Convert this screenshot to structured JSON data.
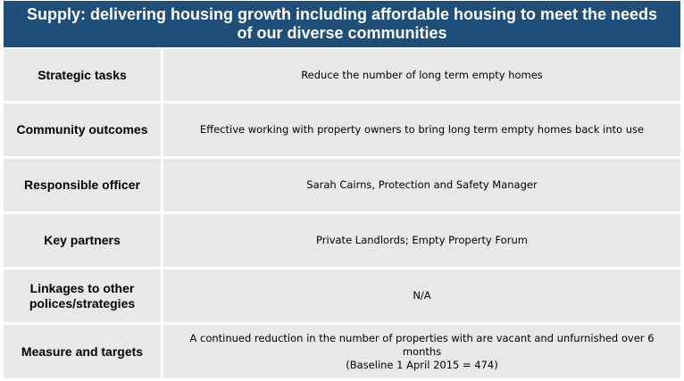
{
  "header": {
    "title_line1": "Supply: delivering housing growth including affordable housing to meet the needs",
    "title_line2": "of our diverse communities"
  },
  "rows": [
    {
      "label": "Strategic tasks",
      "value": "Reduce the number of long term empty homes"
    },
    {
      "label": "Community outcomes",
      "value": "Effective working with property owners to bring long term empty homes back into use"
    },
    {
      "label": "Responsible officer",
      "value": "Sarah Cairns, Protection and Safety Manager"
    },
    {
      "label": "Key partners",
      "value": "Private Landlords; Empty Property Forum"
    },
    {
      "label_line1": "Linkages to other",
      "label_line2": "polices/strategies",
      "value": "N/A"
    },
    {
      "label": "Measure and targets",
      "value_line1": "A continued reduction in the number of properties with are vacant and unfurnished over 6 months",
      "value_line2": "(Baseline 1 April 2015 = 474)"
    }
  ]
}
